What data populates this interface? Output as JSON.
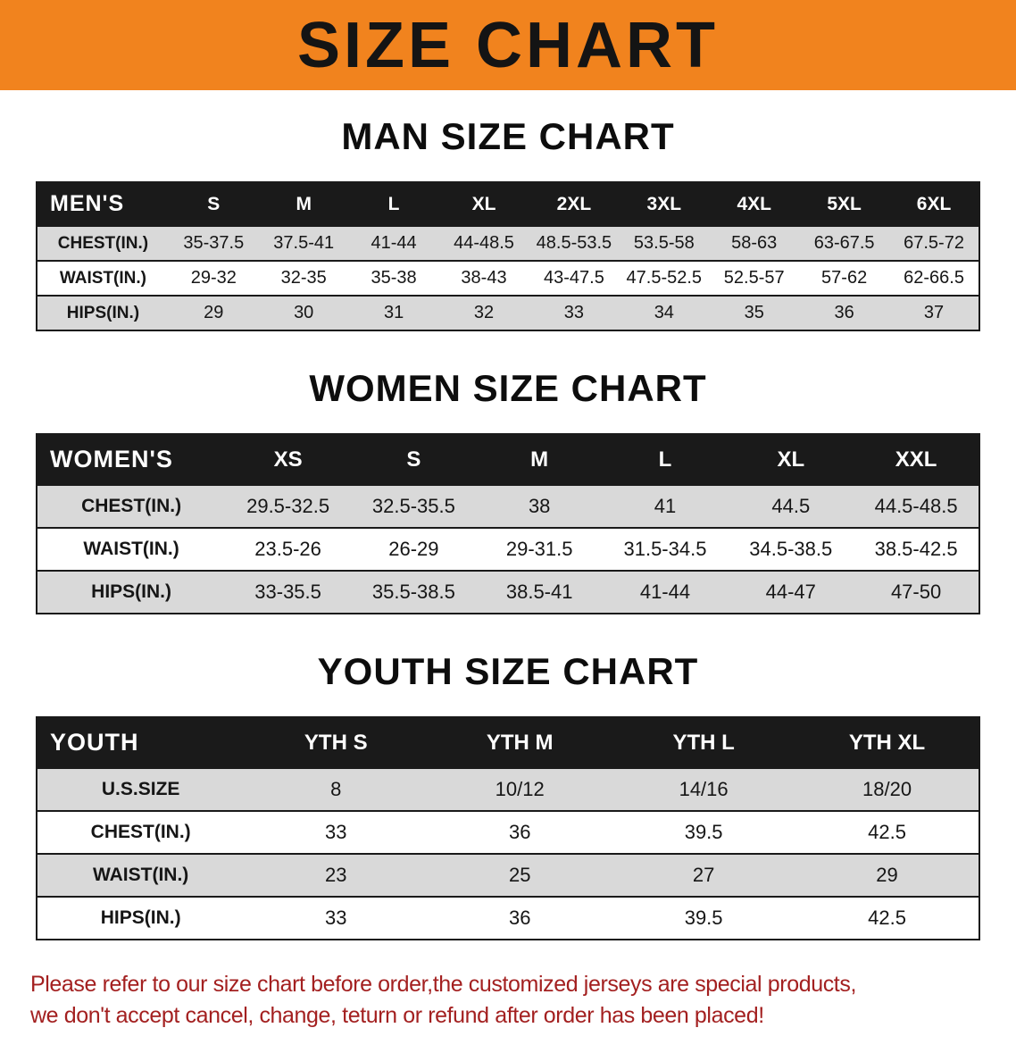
{
  "colors": {
    "banner-bg": "#F1831E",
    "banner-text": "#141414",
    "table-header-bg": "#1A1A1A",
    "table-header-text": "#FFFFFF",
    "row-shade": "#D9D9D9",
    "border": "#1A1A1A",
    "notice-text": "#A32020"
  },
  "banner": {
    "title": "SIZE CHART"
  },
  "sections": [
    {
      "heading": "MAN SIZE CHART",
      "table": {
        "header": [
          "MEN'S",
          "S",
          "M",
          "L",
          "XL",
          "2XL",
          "3XL",
          "4XL",
          "5XL",
          "6XL"
        ],
        "rows": [
          [
            "CHEST(IN.)",
            "35-37.5",
            "37.5-41",
            "41-44",
            "44-48.5",
            "48.5-53.5",
            "53.5-58",
            "58-63",
            "63-67.5",
            "67.5-72"
          ],
          [
            "WAIST(IN.)",
            "29-32",
            "32-35",
            "35-38",
            "38-43",
            "43-47.5",
            "47.5-52.5",
            "52.5-57",
            "57-62",
            "62-66.5"
          ],
          [
            "HIPS(IN.)",
            "29",
            "30",
            "31",
            "32",
            "33",
            "34",
            "35",
            "36",
            "37"
          ]
        ]
      }
    },
    {
      "heading": "WOMEN SIZE CHART",
      "table": {
        "header": [
          "WOMEN'S",
          "XS",
          "S",
          "M",
          "L",
          "XL",
          "XXL"
        ],
        "rows": [
          [
            "CHEST(IN.)",
            "29.5-32.5",
            "32.5-35.5",
            "38",
            "41",
            "44.5",
            "44.5-48.5"
          ],
          [
            "WAIST(IN.)",
            "23.5-26",
            "26-29",
            "29-31.5",
            "31.5-34.5",
            "34.5-38.5",
            "38.5-42.5"
          ],
          [
            "HIPS(IN.)",
            "33-35.5",
            "35.5-38.5",
            "38.5-41",
            "41-44",
            "44-47",
            "47-50"
          ]
        ]
      }
    },
    {
      "heading": "YOUTH SIZE CHART",
      "table": {
        "header": [
          "YOUTH",
          "YTH S",
          "YTH M",
          "YTH L",
          "YTH XL"
        ],
        "rows": [
          [
            "U.S.SIZE",
            "8",
            "10/12",
            "14/16",
            "18/20"
          ],
          [
            "CHEST(IN.)",
            "33",
            "36",
            "39.5",
            "42.5"
          ],
          [
            "WAIST(IN.)",
            "23",
            "25",
            "27",
            "29"
          ],
          [
            "HIPS(IN.)",
            "33",
            "36",
            "39.5",
            "42.5"
          ]
        ]
      }
    }
  ],
  "notice": {
    "line1": "Please refer to our size chart before order,the customized jerseys are special products,",
    "line2": "we don't accept cancel, change, teturn or refund after order has been placed!"
  }
}
